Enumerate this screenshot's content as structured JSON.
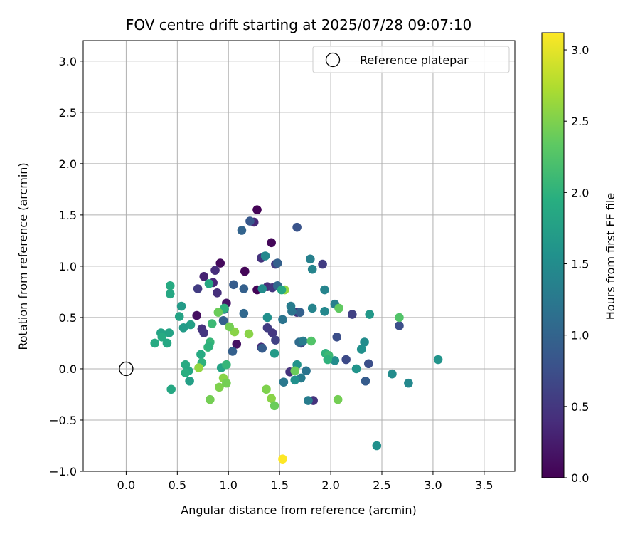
{
  "chart_data": {
    "type": "scatter",
    "title": "FOV centre drift starting at 2025/07/28 09:07:10",
    "xlabel": "Angular distance from reference (arcmin)",
    "ylabel": "Rotation from reference (arcmin)",
    "xlim": [
      -0.42,
      3.8
    ],
    "ylim": [
      -1.0,
      3.2
    ],
    "xticks": [
      "0.0",
      "0.5",
      "1.0",
      "1.5",
      "2.0",
      "2.5",
      "3.0",
      "3.5"
    ],
    "xtick_values": [
      0.0,
      0.5,
      1.0,
      1.5,
      2.0,
      2.5,
      3.0,
      3.5
    ],
    "yticks": [
      "−1.0",
      "−0.5",
      "0.0",
      "0.5",
      "1.0",
      "1.5",
      "2.0",
      "2.5",
      "3.0"
    ],
    "ytick_values": [
      -1.0,
      -0.5,
      0.0,
      0.5,
      1.0,
      1.5,
      2.0,
      2.5,
      3.0
    ],
    "grid": true,
    "legend": {
      "placement": "top-right",
      "entries": [
        "Reference platepar"
      ]
    },
    "reference_point": {
      "x": 0.0,
      "y": 0.0,
      "marker": "open-circle"
    },
    "colorbar": {
      "label": "Hours from first FF file",
      "colormap": "viridis",
      "range": [
        0.0,
        3.12
      ],
      "ticks": [
        "0.0",
        "0.5",
        "1.0",
        "1.5",
        "2.0",
        "2.5",
        "3.0"
      ],
      "tick_values": [
        0.0,
        0.5,
        1.0,
        1.5,
        2.0,
        2.5,
        3.0
      ]
    },
    "series": [
      {
        "points": [
          [
            1.28,
            1.55,
            0.02
          ],
          [
            1.42,
            1.23,
            0.05
          ],
          [
            1.28,
            0.77,
            0.03
          ],
          [
            1.16,
            0.95,
            0.04
          ],
          [
            0.92,
            1.03,
            0.08
          ],
          [
            0.69,
            0.52,
            0.12
          ],
          [
            1.08,
            0.24,
            0.15
          ],
          [
            0.98,
            0.64,
            0.18
          ],
          [
            0.76,
            0.9,
            0.3
          ],
          [
            0.85,
            0.84,
            0.35
          ],
          [
            0.87,
            0.96,
            0.4
          ],
          [
            0.89,
            0.74,
            0.42
          ],
          [
            0.74,
            0.39,
            0.45
          ],
          [
            0.76,
            0.35,
            0.5
          ],
          [
            0.7,
            0.78,
            0.55
          ],
          [
            1.25,
            1.43,
            0.35
          ],
          [
            1.32,
            1.08,
            0.45
          ],
          [
            1.38,
            0.8,
            0.4
          ],
          [
            1.43,
            0.79,
            0.48
          ],
          [
            1.46,
            1.02,
            0.55
          ],
          [
            1.43,
            0.35,
            0.5
          ],
          [
            1.38,
            0.4,
            0.55
          ],
          [
            1.32,
            0.21,
            0.4
          ],
          [
            1.46,
            0.28,
            0.6
          ],
          [
            1.6,
            -0.03,
            0.45
          ],
          [
            1.67,
            0.55,
            0.45
          ],
          [
            1.71,
            0.25,
            0.65
          ],
          [
            1.92,
            1.02,
            0.55
          ],
          [
            1.83,
            -0.31,
            0.45
          ],
          [
            2.06,
            0.31,
            0.75
          ],
          [
            2.15,
            0.09,
            0.7
          ],
          [
            2.21,
            0.53,
            0.6
          ],
          [
            2.34,
            -0.12,
            0.9
          ],
          [
            2.37,
            0.05,
            0.75
          ],
          [
            2.67,
            0.42,
            0.75
          ],
          [
            1.67,
            1.38,
            0.8
          ],
          [
            1.21,
            1.44,
            0.85
          ],
          [
            1.13,
            1.35,
            1.0
          ],
          [
            1.05,
            0.82,
            0.9
          ],
          [
            1.15,
            0.78,
            0.95
          ],
          [
            1.15,
            0.54,
            1.05
          ],
          [
            1.04,
            0.17,
            0.95
          ],
          [
            1.33,
            0.2,
            0.9
          ],
          [
            0.95,
            0.47,
            0.95
          ],
          [
            0.96,
            0.58,
            1.1
          ],
          [
            1.48,
            1.03,
            0.95
          ],
          [
            1.48,
            0.81,
            1.05
          ],
          [
            1.53,
            0.48,
            1.2
          ],
          [
            1.7,
            0.55,
            0.95
          ],
          [
            1.62,
            0.56,
            1.2
          ],
          [
            1.61,
            0.61,
            1.3
          ],
          [
            1.69,
            0.26,
            1.1
          ],
          [
            1.73,
            0.27,
            1.3
          ],
          [
            1.76,
            -0.02,
            1.2
          ],
          [
            1.54,
            -0.13,
            1.25
          ],
          [
            1.71,
            -0.09,
            1.3
          ],
          [
            1.78,
            -0.31,
            1.3
          ],
          [
            1.8,
            1.07,
            1.35
          ],
          [
            1.82,
            0.97,
            1.4
          ],
          [
            1.82,
            0.59,
            1.4
          ],
          [
            1.94,
            0.77,
            1.4
          ],
          [
            1.94,
            0.56,
            1.45
          ],
          [
            2.04,
            0.63,
            1.35
          ],
          [
            2.04,
            0.08,
            1.5
          ],
          [
            2.33,
            0.26,
            1.5
          ],
          [
            2.3,
            0.19,
            1.55
          ],
          [
            2.38,
            0.53,
            1.65
          ],
          [
            2.25,
            0.0,
            1.6
          ],
          [
            2.45,
            -0.75,
            1.55
          ],
          [
            2.6,
            -0.05,
            1.5
          ],
          [
            2.76,
            -0.14,
            1.45
          ],
          [
            3.05,
            0.09,
            1.6
          ],
          [
            1.36,
            1.1,
            1.45
          ],
          [
            1.33,
            0.78,
            1.5
          ],
          [
            1.38,
            0.5,
            1.55
          ],
          [
            1.45,
            0.15,
            1.7
          ],
          [
            1.65,
            -0.11,
            1.55
          ],
          [
            1.67,
            0.04,
            1.6
          ],
          [
            0.63,
            0.43,
            1.75
          ],
          [
            0.56,
            0.4,
            1.7
          ],
          [
            0.54,
            0.61,
            1.7
          ],
          [
            0.52,
            0.51,
            1.8
          ],
          [
            0.43,
            0.81,
            1.9
          ],
          [
            0.43,
            0.73,
            1.85
          ],
          [
            0.42,
            0.35,
            1.8
          ],
          [
            0.34,
            0.35,
            1.8
          ],
          [
            0.4,
            0.25,
            1.85
          ],
          [
            0.35,
            0.31,
            1.9
          ],
          [
            0.28,
            0.25,
            1.9
          ],
          [
            0.44,
            -0.2,
            1.85
          ],
          [
            0.58,
            0.04,
            1.9
          ],
          [
            0.61,
            -0.02,
            1.85
          ],
          [
            0.58,
            -0.04,
            1.95
          ],
          [
            0.62,
            -0.12,
            1.75
          ],
          [
            0.73,
            0.14,
            1.9
          ],
          [
            0.74,
            0.06,
            2.0
          ],
          [
            0.8,
            0.21,
            2.05
          ],
          [
            0.82,
            0.26,
            2.05
          ],
          [
            0.81,
            0.22,
            2.0
          ],
          [
            0.84,
            0.44,
            2.1
          ],
          [
            0.81,
            0.83,
            1.85
          ],
          [
            0.93,
            0.01,
            1.8
          ],
          [
            0.98,
            0.04,
            2.05
          ],
          [
            0.96,
            0.59,
            2.0
          ],
          [
            1.95,
            0.15,
            2.0
          ],
          [
            1.98,
            0.13,
            2.1
          ],
          [
            1.97,
            0.09,
            2.0
          ],
          [
            1.81,
            0.27,
            2.25
          ],
          [
            2.08,
            0.59,
            2.35
          ],
          [
            2.67,
            0.5,
            2.25
          ],
          [
            1.55,
            0.77,
            2.6
          ],
          [
            1.52,
            0.77,
            1.85
          ],
          [
            1.2,
            0.34,
            2.55
          ],
          [
            1.06,
            0.36,
            2.55
          ],
          [
            1.01,
            0.41,
            2.45
          ],
          [
            0.9,
            0.55,
            2.4
          ],
          [
            0.71,
            0.01,
            2.6
          ],
          [
            0.82,
            -0.3,
            2.45
          ],
          [
            0.91,
            -0.18,
            2.5
          ],
          [
            0.95,
            -0.09,
            2.55
          ],
          [
            0.98,
            -0.14,
            2.45
          ],
          [
            1.37,
            -0.2,
            2.5
          ],
          [
            1.42,
            -0.29,
            2.55
          ],
          [
            1.45,
            -0.36,
            2.4
          ],
          [
            1.65,
            -0.02,
            2.4
          ],
          [
            2.07,
            -0.3,
            2.45
          ],
          [
            1.53,
            -0.88,
            3.12
          ]
        ]
      }
    ]
  }
}
